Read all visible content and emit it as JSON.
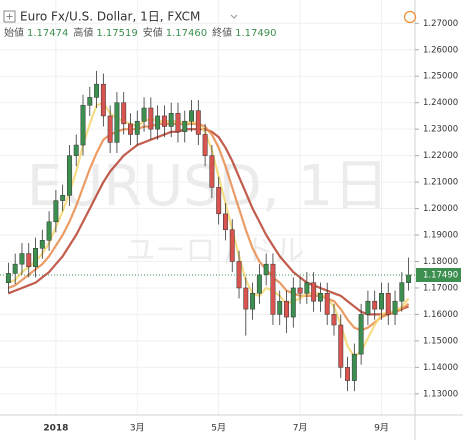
{
  "chart_data": {
    "type": "candlestick",
    "title": "Euro Fx/U.S. Dollar, 1日, FXCM",
    "watermark": "EURUSD, 1日",
    "watermark_sub": "ユーロ / ドル",
    "ohlc_header": [
      {
        "label": "始値",
        "value": "1.17474"
      },
      {
        "label": "高値",
        "value": "1.17519"
      },
      {
        "label": "安値",
        "value": "1.17460"
      },
      {
        "label": "終値",
        "value": "1.17490"
      }
    ],
    "categories": [
      null,
      null,
      null,
      null,
      null,
      null,
      null,
      "2018",
      null,
      null,
      null,
      null,
      null,
      null,
      null,
      null,
      null,
      null,
      null,
      "3月",
      null,
      null,
      null,
      null,
      null,
      null,
      null,
      null,
      null,
      null,
      null,
      "5月",
      null,
      null,
      null,
      null,
      null,
      null,
      null,
      null,
      null,
      null,
      null,
      "7月",
      null,
      null,
      null,
      null,
      null,
      null,
      null,
      null,
      null,
      null,
      null,
      "9月",
      null,
      null,
      null,
      null
    ],
    "open": [
      1.172,
      1.1755,
      1.179,
      1.183,
      1.178,
      1.185,
      1.188,
      1.195,
      1.203,
      1.205,
      1.22,
      1.224,
      1.239,
      1.242,
      1.247,
      1.235,
      1.225,
      1.24,
      1.232,
      1.228,
      1.233,
      1.238,
      1.23,
      1.235,
      1.231,
      1.236,
      1.229,
      1.233,
      1.237,
      1.228,
      1.22,
      1.208,
      1.198,
      1.192,
      1.18,
      1.17,
      1.162,
      1.168,
      1.175,
      1.179,
      1.16,
      1.165,
      1.159,
      1.17,
      1.168,
      1.172,
      1.165,
      1.168,
      1.16,
      1.156,
      1.14,
      1.135,
      1.145,
      1.16,
      1.165,
      1.162,
      1.168,
      1.16,
      1.165,
      1.172
    ],
    "high": [
      1.1795,
      1.183,
      1.187,
      1.187,
      1.189,
      1.192,
      1.199,
      1.207,
      1.209,
      1.224,
      1.228,
      1.243,
      1.246,
      1.252,
      1.251,
      1.239,
      1.244,
      1.244,
      1.236,
      1.237,
      1.242,
      1.242,
      1.239,
      1.239,
      1.24,
      1.24,
      1.237,
      1.241,
      1.241,
      1.232,
      1.224,
      1.212,
      1.202,
      1.196,
      1.184,
      1.174,
      1.172,
      1.179,
      1.183,
      1.183,
      1.169,
      1.169,
      1.174,
      1.174,
      1.176,
      1.176,
      1.172,
      1.172,
      1.164,
      1.16,
      1.144,
      1.149,
      1.164,
      1.169,
      1.169,
      1.172,
      1.172,
      1.169,
      1.176,
      1.1815
    ],
    "low": [
      1.168,
      1.1715,
      1.175,
      1.174,
      1.174,
      1.181,
      1.184,
      1.191,
      1.199,
      1.201,
      1.216,
      1.22,
      1.235,
      1.238,
      1.231,
      1.221,
      1.221,
      1.228,
      1.224,
      1.224,
      1.229,
      1.226,
      1.226,
      1.227,
      1.227,
      1.225,
      1.225,
      1.229,
      1.224,
      1.216,
      1.204,
      1.194,
      1.188,
      1.176,
      1.166,
      1.152,
      1.158,
      1.164,
      1.171,
      1.156,
      1.156,
      1.153,
      1.155,
      1.164,
      1.164,
      1.161,
      1.161,
      1.156,
      1.152,
      1.136,
      1.131,
      1.131,
      1.141,
      1.156,
      1.158,
      1.158,
      1.156,
      1.156,
      1.161,
      1.169
    ],
    "close": [
      1.1755,
      1.179,
      1.183,
      1.178,
      1.185,
      1.188,
      1.195,
      1.203,
      1.205,
      1.22,
      1.224,
      1.239,
      1.242,
      1.247,
      1.235,
      1.225,
      1.24,
      1.232,
      1.228,
      1.233,
      1.238,
      1.23,
      1.235,
      1.231,
      1.236,
      1.229,
      1.233,
      1.237,
      1.228,
      1.22,
      1.208,
      1.198,
      1.192,
      1.18,
      1.17,
      1.162,
      1.168,
      1.175,
      1.179,
      1.16,
      1.165,
      1.159,
      1.17,
      1.168,
      1.172,
      1.165,
      1.168,
      1.16,
      1.156,
      1.14,
      1.135,
      1.145,
      1.16,
      1.165,
      1.162,
      1.168,
      1.16,
      1.165,
      1.172,
      1.1749
    ],
    "up_color": "#3d8f4f",
    "down_color": "#d9534f",
    "overlays": [
      {
        "color": "#b7412e",
        "values": [
          1.168,
          1.169,
          1.17,
          1.171,
          1.172,
          1.174,
          1.176,
          1.179,
          1.182,
          1.186,
          1.19,
          1.195,
          1.2,
          1.205,
          1.21,
          1.214,
          1.217,
          1.22,
          1.222,
          1.224,
          1.225,
          1.226,
          1.227,
          1.228,
          1.229,
          1.229,
          1.23,
          1.23,
          1.23,
          1.23,
          1.229,
          1.227,
          1.223,
          1.218,
          1.212,
          1.206,
          1.2,
          1.195,
          1.19,
          1.186,
          1.182,
          1.179,
          1.176,
          1.174,
          1.172,
          1.171,
          1.17,
          1.169,
          1.168,
          1.167,
          1.165,
          1.163,
          1.161,
          1.16,
          1.16,
          1.16,
          1.16,
          1.161,
          1.162,
          1.163
        ]
      },
      {
        "color": "#e8894a",
        "values": [
          1.17,
          1.171,
          1.173,
          1.175,
          1.177,
          1.179,
          1.182,
          1.186,
          1.19,
          1.195,
          1.201,
          1.208,
          1.215,
          1.221,
          1.226,
          1.228,
          1.229,
          1.23,
          1.23,
          1.23,
          1.231,
          1.231,
          1.232,
          1.232,
          1.232,
          1.232,
          1.232,
          1.232,
          1.232,
          1.231,
          1.228,
          1.223,
          1.216,
          1.208,
          1.2,
          1.192,
          1.185,
          1.18,
          1.177,
          1.174,
          1.172,
          1.169,
          1.168,
          1.167,
          1.167,
          1.167,
          1.167,
          1.166,
          1.165,
          1.162,
          1.158,
          1.155,
          1.154,
          1.155,
          1.157,
          1.159,
          1.16,
          1.161,
          1.162,
          1.164
        ]
      },
      {
        "color": "#f5d76e",
        "values": [
          1.172,
          1.173,
          1.176,
          1.178,
          1.18,
          1.183,
          1.187,
          1.193,
          1.199,
          1.206,
          1.214,
          1.224,
          1.232,
          1.239,
          1.24,
          1.236,
          1.234,
          1.233,
          1.232,
          1.231,
          1.233,
          1.234,
          1.233,
          1.233,
          1.233,
          1.233,
          1.232,
          1.233,
          1.232,
          1.229,
          1.222,
          1.212,
          1.202,
          1.192,
          1.182,
          1.173,
          1.168,
          1.167,
          1.17,
          1.169,
          1.167,
          1.164,
          1.165,
          1.166,
          1.168,
          1.168,
          1.168,
          1.166,
          1.163,
          1.156,
          1.148,
          1.144,
          1.146,
          1.151,
          1.156,
          1.16,
          1.161,
          1.161,
          1.163,
          1.166
        ]
      }
    ],
    "last_price": {
      "value": 1.1749,
      "label": "1.17490"
    },
    "ylim": [
      1.122,
      1.2788
    ],
    "yticks": [
      {
        "value": 1.13,
        "label": "1.13000"
      },
      {
        "value": 1.14,
        "label": "1.14000"
      },
      {
        "value": 1.15,
        "label": "1.15000"
      },
      {
        "value": 1.16,
        "label": "1.16000"
      },
      {
        "value": 1.17,
        "label": "1.17000"
      },
      {
        "value": 1.18,
        "label": "1.18000"
      },
      {
        "value": 1.19,
        "label": "1.19000"
      },
      {
        "value": 1.2,
        "label": "1.20000"
      },
      {
        "value": 1.21,
        "label": "1.21000"
      },
      {
        "value": 1.22,
        "label": "1.22000"
      },
      {
        "value": 1.23,
        "label": "1.23000"
      },
      {
        "value": 1.24,
        "label": "1.24000"
      },
      {
        "value": 1.25,
        "label": "1.25000"
      },
      {
        "value": 1.26,
        "label": "1.26000"
      },
      {
        "value": 1.27,
        "label": "1.27000"
      }
    ],
    "grid": true
  }
}
